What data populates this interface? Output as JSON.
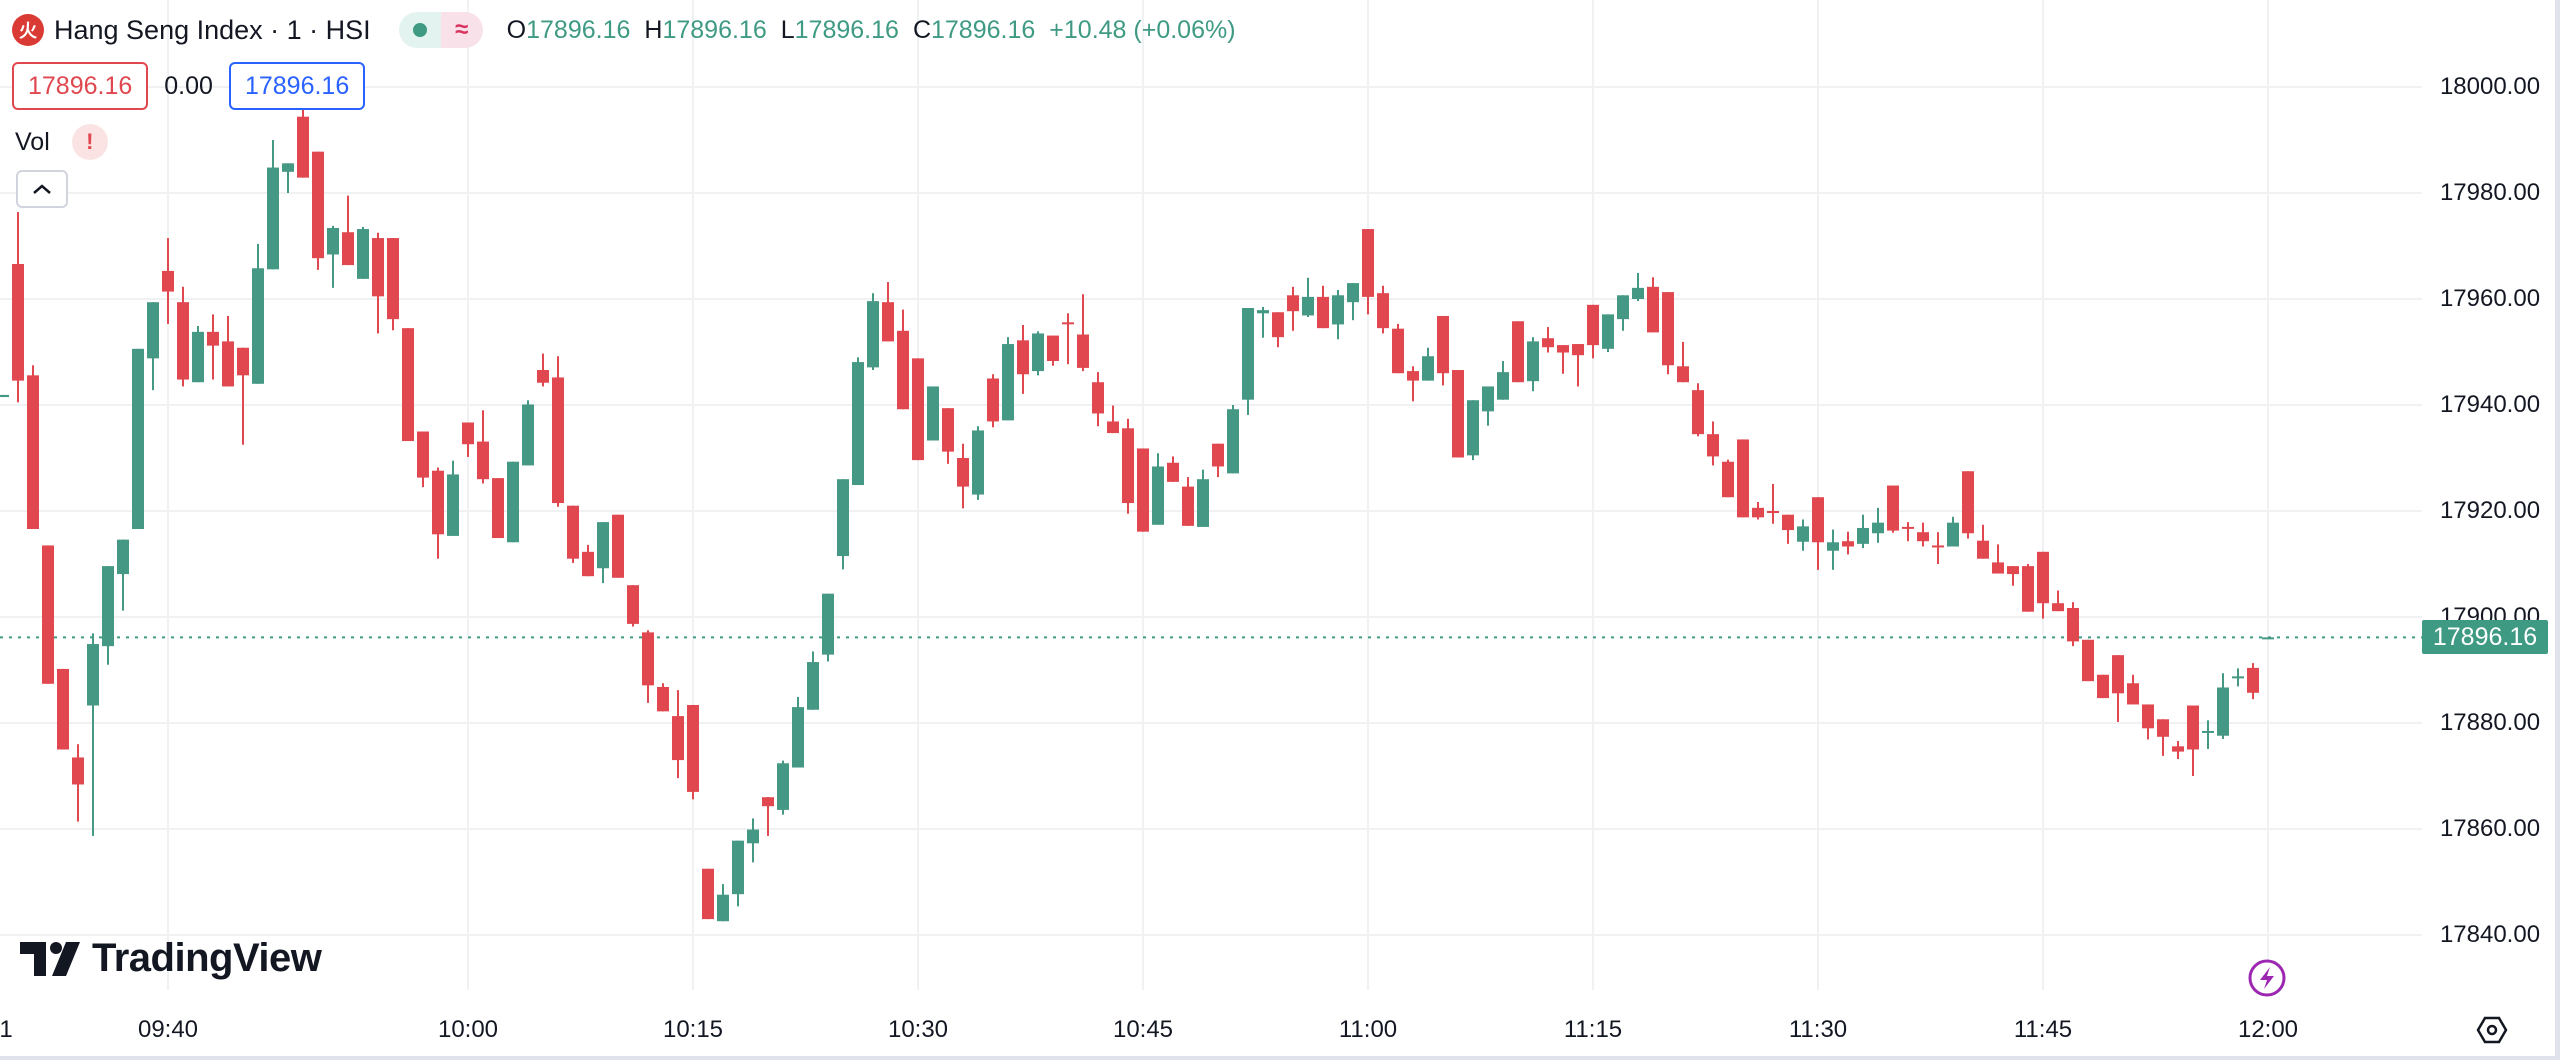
{
  "header": {
    "logo_glyph": "火",
    "title": "Hang Seng Index · 1 · HSI",
    "status_dot_label": "market-open",
    "delay_glyph": "≈",
    "ohlc": {
      "o_label": "O",
      "o": "17896.16",
      "h_label": "H",
      "h": "17896.16",
      "l_label": "L",
      "l": "17896.16",
      "c_label": "C",
      "c": "17896.16",
      "change": "+10.48 (+0.06%)"
    }
  },
  "quote": {
    "sell": "17896.16",
    "spread": "0.00",
    "buy": "17896.16"
  },
  "indicator": {
    "name": "Vol",
    "warning_glyph": "!",
    "collapse_glyph": "^"
  },
  "branding": {
    "logo_text": "TradingView"
  },
  "price_tag": "17896.16",
  "colors": {
    "up": "#449884",
    "down": "#e0474f",
    "grid": "#f0f1f3",
    "last_line": "#3f9a84"
  },
  "chart_data": {
    "type": "candlestick",
    "title": "Hang Seng Index · 1 · HSI",
    "interval_minutes": 1,
    "start_time": "09:29",
    "ylim": [
      17825,
      18016
    ],
    "y_ticks": [
      "18000.00",
      "17980.00",
      "17960.00",
      "17940.00",
      "17920.00",
      "17900.00",
      "17880.00",
      "17860.00",
      "17840.00"
    ],
    "y_tick_values": [
      18000,
      17980,
      17960,
      17940,
      17920,
      17900,
      17880,
      17860,
      17840
    ],
    "x_ticks": [
      {
        "label": "1",
        "minute_index": -1.6
      },
      {
        "label": "09:40",
        "minute_index": 11
      },
      {
        "label": "10:00",
        "minute_index": 31
      },
      {
        "label": "10:15",
        "minute_index": 46
      },
      {
        "label": "10:30",
        "minute_index": 61
      },
      {
        "label": "10:45",
        "minute_index": 76
      },
      {
        "label": "11:00",
        "minute_index": 91
      },
      {
        "label": "11:15",
        "minute_index": 106
      },
      {
        "label": "11:30",
        "minute_index": 121
      },
      {
        "label": "11:45",
        "minute_index": 136
      },
      {
        "label": "12:00",
        "minute_index": 151
      }
    ],
    "last_price": 17896.16,
    "grid": true,
    "candles_ohlc": [
      [
        17941.5,
        17941.9,
        17941.5,
        17941.9
      ],
      [
        17966.6,
        17976.4,
        17940.5,
        17944.6
      ],
      [
        17945.6,
        17947.5,
        17916.6,
        17916.6
      ],
      [
        17913.5,
        17913.5,
        17887.4,
        17887.4
      ],
      [
        17890.2,
        17890.2,
        17875,
        17875
      ],
      [
        17873.5,
        17876,
        17861.4,
        17868.4
      ],
      [
        17883.3,
        17896.9,
        17858.7,
        17894.9
      ],
      [
        17894.5,
        17909.6,
        17891,
        17909.6
      ],
      [
        17908.1,
        17914.6,
        17901.2,
        17914.6
      ],
      [
        17916.6,
        17950.6,
        17916.6,
        17950.6
      ],
      [
        17948.8,
        17959.4,
        17942.8,
        17959.4
      ],
      [
        17965.3,
        17971.5,
        17955.3,
        17961.4
      ],
      [
        17959.4,
        17962.3,
        17943.5,
        17944.8
      ],
      [
        17944.3,
        17954.9,
        17944.3,
        17953.8
      ],
      [
        17953.8,
        17957.1,
        17944.8,
        17951.2
      ],
      [
        17952,
        17956.8,
        17943.5,
        17943.5
      ],
      [
        17950.8,
        17950.8,
        17932.5,
        17945.6
      ],
      [
        17944,
        17970.4,
        17944,
        17965.8
      ],
      [
        17965.6,
        17990,
        17965.6,
        17984.8
      ],
      [
        17984,
        17985.6,
        17980,
        17985.6
      ],
      [
        17994.4,
        17996.1,
        17982.9,
        17982.9
      ],
      [
        17987.8,
        17987.8,
        17965.5,
        17967.7
      ],
      [
        17968.4,
        17973.8,
        17962.1,
        17973.4
      ],
      [
        17972.6,
        17979.5,
        17966.4,
        17966.4
      ],
      [
        17963.8,
        17973.6,
        17963.8,
        17973.2
      ],
      [
        17971.5,
        17972.5,
        17953.5,
        17960.5
      ],
      [
        17971.5,
        17971.5,
        17954.1,
        17956.2
      ],
      [
        17954.5,
        17954.5,
        17933.2,
        17933.2
      ],
      [
        17935,
        17935,
        17924.5,
        17926.3
      ],
      [
        17927.6,
        17928.2,
        17911,
        17915.6
      ],
      [
        17915.3,
        17929.5,
        17915.3,
        17926.9
      ],
      [
        17936.7,
        17936.7,
        17930.2,
        17932.6
      ],
      [
        17933.1,
        17939,
        17925.2,
        17926
      ],
      [
        17926.2,
        17926.2,
        17914.9,
        17914.9
      ],
      [
        17914.1,
        17929.3,
        17914.1,
        17929.3
      ],
      [
        17928.6,
        17940.9,
        17928.6,
        17940.1
      ],
      [
        17946.6,
        17949.7,
        17943.5,
        17944.2
      ],
      [
        17945.2,
        17949.2,
        17920.8,
        17921.5
      ],
      [
        17921,
        17921,
        17910.2,
        17911
      ],
      [
        17912.3,
        17913.6,
        17907.7,
        17907.7
      ],
      [
        17909.2,
        17917.9,
        17906.4,
        17917.9
      ],
      [
        17919.3,
        17919.3,
        17907.4,
        17907.4
      ],
      [
        17906,
        17906,
        17898.2,
        17898.7
      ],
      [
        17897.1,
        17897.5,
        17883.8,
        17887.1
      ],
      [
        17886.8,
        17887.5,
        17882.2,
        17882.2
      ],
      [
        17881.3,
        17886.2,
        17869.6,
        17873
      ],
      [
        17883.4,
        17883.4,
        17865.6,
        17867
      ],
      [
        17852.5,
        17852.5,
        17843,
        17843
      ],
      [
        17842.6,
        17849.6,
        17842.6,
        17847.6
      ],
      [
        17847.7,
        17857.8,
        17845.4,
        17857.8
      ],
      [
        17857.3,
        17862,
        17853.7,
        17859.9
      ],
      [
        17866,
        17866,
        17858.7,
        17864.3
      ],
      [
        17863.6,
        17872.9,
        17862.7,
        17872.4
      ],
      [
        17871.6,
        17884.9,
        17871.6,
        17883
      ],
      [
        17882.5,
        17893.5,
        17882.5,
        17891.5
      ],
      [
        17892.9,
        17904.4,
        17891.6,
        17904.4
      ],
      [
        17911.5,
        17926,
        17909,
        17926
      ],
      [
        17924.9,
        17949,
        17924.9,
        17948.1
      ],
      [
        17947.1,
        17961.1,
        17946.6,
        17959.6
      ],
      [
        17959.4,
        17963.2,
        17952,
        17952
      ],
      [
        17954,
        17958,
        17939.2,
        17939.2
      ],
      [
        17948.8,
        17948.8,
        17929.6,
        17929.6
      ],
      [
        17933.3,
        17943.5,
        17933.3,
        17943.5
      ],
      [
        17939.4,
        17939.4,
        17928.9,
        17931.2
      ],
      [
        17930,
        17932.7,
        17920.5,
        17924.6
      ],
      [
        17923.1,
        17936,
        17922.1,
        17935.2
      ],
      [
        17945,
        17945.8,
        17935.8,
        17936.9
      ],
      [
        17937.1,
        17952.8,
        17937.1,
        17951.5
      ],
      [
        17952.2,
        17955.1,
        17942.1,
        17945.8
      ],
      [
        17946.4,
        17953.9,
        17945.6,
        17953.5
      ],
      [
        17953.1,
        17953.1,
        17947.4,
        17948.3
      ],
      [
        17955.6,
        17957.3,
        17947.7,
        17955.4
      ],
      [
        17953.3,
        17960.9,
        17946.4,
        17947
      ],
      [
        17944.3,
        17946.2,
        17936,
        17938.4
      ],
      [
        17936.9,
        17939.9,
        17934.7,
        17934.7
      ],
      [
        17935.6,
        17937.4,
        17919.5,
        17921.5
      ],
      [
        17931.8,
        17931.8,
        17916.1,
        17916.1
      ],
      [
        17917.4,
        17930.9,
        17917.4,
        17928.4
      ],
      [
        17929.1,
        17930.3,
        17925.5,
        17925.5
      ],
      [
        17924.6,
        17926.4,
        17917.2,
        17917.2
      ],
      [
        17917,
        17927.8,
        17917,
        17926
      ],
      [
        17932.7,
        17932.7,
        17926.4,
        17928.4
      ],
      [
        17927.1,
        17940,
        17927.1,
        17939.2
      ],
      [
        17941,
        17958.3,
        17938.1,
        17958.3
      ],
      [
        17957.3,
        17958.5,
        17952.7,
        17957.9
      ],
      [
        17957.5,
        17957.5,
        17950.9,
        17952.8
      ],
      [
        17960.7,
        17962.3,
        17954,
        17957.7
      ],
      [
        17956.9,
        17964,
        17956.6,
        17960.4
      ],
      [
        17960.4,
        17962.5,
        17954.5,
        17954.5
      ],
      [
        17955.2,
        17961.7,
        17952.4,
        17960.7
      ],
      [
        17959.4,
        17963,
        17956,
        17963
      ],
      [
        17973.2,
        17973.2,
        17957.1,
        17960.4
      ],
      [
        17961.1,
        17962.5,
        17953.5,
        17954.5
      ],
      [
        17954.4,
        17955.3,
        17946,
        17946
      ],
      [
        17946.4,
        17947.3,
        17940.7,
        17944.6
      ],
      [
        17944.6,
        17950.8,
        17944.6,
        17949.2
      ],
      [
        17956.8,
        17956.8,
        17943.7,
        17946
      ],
      [
        17946.6,
        17946.6,
        17930.1,
        17930.1
      ],
      [
        17930.5,
        17940.9,
        17929.6,
        17940.9
      ],
      [
        17938.8,
        17943.5,
        17936.1,
        17943.5
      ],
      [
        17941,
        17948.3,
        17941,
        17946.2
      ],
      [
        17955.8,
        17955.8,
        17944.3,
        17944.3
      ],
      [
        17944.5,
        17952.8,
        17942.6,
        17952
      ],
      [
        17952.6,
        17954.7,
        17949.9,
        17950.9
      ],
      [
        17951.3,
        17951.3,
        17945.9,
        17949.9
      ],
      [
        17951.5,
        17951.5,
        17943.5,
        17949.4
      ],
      [
        17958.9,
        17958.9,
        17948.8,
        17951.3
      ],
      [
        17950.6,
        17957.1,
        17950,
        17957.1
      ],
      [
        17956.2,
        17960.7,
        17954,
        17960.7
      ],
      [
        17960,
        17964.9,
        17959.6,
        17962.1
      ],
      [
        17962.3,
        17964.1,
        17953.7,
        17953.7
      ],
      [
        17961.3,
        17961.3,
        17945.8,
        17947.5
      ],
      [
        17947.3,
        17951.9,
        17944.3,
        17944.3
      ],
      [
        17942.8,
        17944.1,
        17934.1,
        17934.5
      ],
      [
        17934.5,
        17936.9,
        17928.6,
        17930.3
      ],
      [
        17929.3,
        17929.7,
        17922.6,
        17922.6
      ],
      [
        17933.5,
        17933.5,
        17918.8,
        17918.8
      ],
      [
        17920.6,
        17921.7,
        17918.4,
        17918.8
      ],
      [
        17920,
        17925.1,
        17917.6,
        17919.8
      ],
      [
        17919.3,
        17919.3,
        17913.8,
        17916.4
      ],
      [
        17914.2,
        17918.4,
        17912.5,
        17917.1
      ],
      [
        17922.6,
        17922.6,
        17908.9,
        17914.1
      ],
      [
        17912.5,
        17916.5,
        17908.9,
        17914.1
      ],
      [
        17914.3,
        17916.1,
        17911.8,
        17913.3
      ],
      [
        17913.8,
        17919.3,
        17913,
        17916.8
      ],
      [
        17915.8,
        17920.6,
        17914,
        17917.8
      ],
      [
        17924.8,
        17924.8,
        17915.9,
        17916.3
      ],
      [
        17917,
        17917.9,
        17914.3,
        17916.9
      ],
      [
        17916,
        17917.8,
        17913.3,
        17914.3
      ],
      [
        17913.5,
        17916,
        17910,
        17913.4
      ],
      [
        17913.3,
        17918.9,
        17913.3,
        17917.8
      ],
      [
        17927.5,
        17927.5,
        17914.8,
        17915.8
      ],
      [
        17914.4,
        17917.4,
        17911,
        17911
      ],
      [
        17910.3,
        17913.7,
        17908.2,
        17908.2
      ],
      [
        17909.6,
        17909.6,
        17905.9,
        17908.1
      ],
      [
        17909.6,
        17910,
        17901,
        17901
      ],
      [
        17912.3,
        17912.3,
        17899.7,
        17902.6
      ],
      [
        17902.6,
        17905,
        17901.1,
        17901.1
      ],
      [
        17901.7,
        17902.8,
        17894.5,
        17895.4
      ],
      [
        17895.7,
        17895.7,
        17887.9,
        17887.9
      ],
      [
        17889.1,
        17889.1,
        17884.7,
        17884.7
      ],
      [
        17892.8,
        17892.8,
        17880.2,
        17885.6
      ],
      [
        17887.5,
        17889.1,
        17883.5,
        17883.5
      ],
      [
        17883.5,
        17883.5,
        17876.9,
        17879
      ],
      [
        17880.7,
        17880.7,
        17873.8,
        17877.4
      ],
      [
        17875.6,
        17876.6,
        17873.2,
        17874.6
      ],
      [
        17883.3,
        17883.3,
        17870,
        17875
      ],
      [
        17878.2,
        17880.5,
        17875.1,
        17878.5
      ],
      [
        17877.6,
        17889.4,
        17877,
        17886.7
      ],
      [
        17888.6,
        17890.3,
        17886.9,
        17888.8
      ],
      [
        17890.4,
        17891.3,
        17884.5,
        17885.7
      ],
      [
        17896.16,
        17896.16,
        17896.16,
        17896.16
      ]
    ]
  }
}
